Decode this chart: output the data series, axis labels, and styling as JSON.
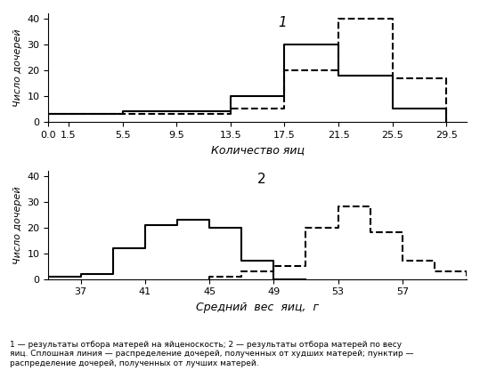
{
  "plot1": {
    "label": "1",
    "xlabel": "Количество яиц",
    "ylabel": "Число дочерей",
    "xticks": [
      0,
      1.5,
      5.5,
      9.5,
      13.5,
      17.5,
      21.5,
      25.5,
      29.5
    ],
    "xlim": [
      0,
      31
    ],
    "ylim": [
      0,
      42
    ],
    "yticks": [
      0,
      10,
      20,
      30,
      40
    ],
    "solid_bins": [
      0,
      1.5,
      5.5,
      9.5,
      13.5,
      17.5,
      21.5,
      25.5,
      29.5
    ],
    "solid_heights": [
      3,
      3,
      4,
      4,
      10,
      30,
      18,
      5
    ],
    "dashed_bins": [
      0,
      1.5,
      5.5,
      9.5,
      13.5,
      17.5,
      21.5,
      25.5,
      29.5
    ],
    "dashed_heights": [
      3,
      3,
      3,
      3,
      5,
      20,
      40,
      17
    ]
  },
  "plot2": {
    "label": "2",
    "xlabel": "Средний  вес  яиц,  г",
    "ylabel": "Число дочерей",
    "xticks": [
      37,
      41,
      45,
      49,
      53,
      57
    ],
    "xlim": [
      35,
      61
    ],
    "ylim": [
      0,
      42
    ],
    "yticks": [
      0,
      10,
      20,
      30,
      40
    ],
    "solid_bins": [
      35,
      37,
      39,
      41,
      43,
      45,
      47,
      49,
      51
    ],
    "solid_heights": [
      1,
      2,
      12,
      21,
      23,
      20,
      7,
      0
    ],
    "dashed_bins": [
      45,
      47,
      49,
      51,
      53,
      55,
      57,
      59,
      61
    ],
    "dashed_heights": [
      1,
      3,
      5,
      20,
      28,
      18,
      7,
      3
    ]
  },
  "caption": "1 — результаты отбора матерей на яйценоскость; 2 — результаты отбора матерей по весу\nяиц. Сплошная линия — распределение дочерей, полученных от худших матерей; пунктир —\nраспределение дочерей, полученных от лучших матерей.",
  "linewidth": 1.5
}
